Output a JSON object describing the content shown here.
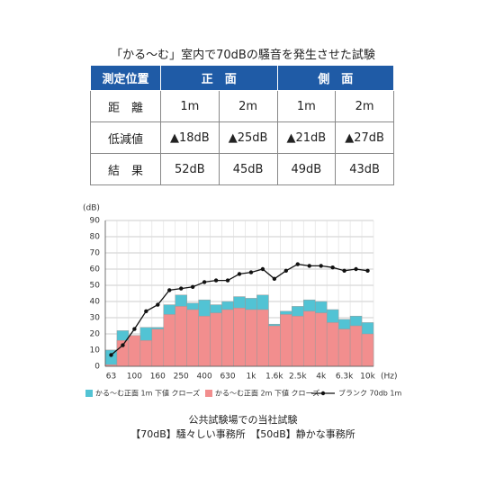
{
  "header": {
    "title": "「かる～む」室内で70dBの騒音を発生させた試験"
  },
  "table": {
    "header": [
      "測定位置",
      "正　面",
      "側　面"
    ],
    "rows": [
      [
        "距　離",
        "1m",
        "2m",
        "1m",
        "2m"
      ],
      [
        "低減値",
        "▲18dB",
        "▲25dB",
        "▲21dB",
        "▲27dB"
      ],
      [
        "結　果",
        "52dB",
        "45dB",
        "49dB",
        "43dB"
      ]
    ]
  },
  "chart_data": {
    "type": "bar",
    "ylabel": "(dB)",
    "xlabel": "(Hz)",
    "categories": [
      "63",
      null,
      "100",
      null,
      "160",
      null,
      "250",
      null,
      "400",
      null,
      "630",
      null,
      "1k",
      null,
      "1.6k",
      null,
      "2.5k",
      null,
      "4k",
      null,
      "6.3k",
      null,
      "10k"
    ],
    "series": [
      {
        "name": "かる～む正面 1m 下値 クローズ",
        "type": "bar",
        "color": "#52c3d4",
        "values": [
          10,
          22,
          19,
          24,
          24,
          38,
          44,
          39,
          41,
          38,
          40,
          43,
          42,
          44,
          26,
          34,
          37,
          41,
          40,
          35,
          29,
          31,
          27
        ]
      },
      {
        "name": "かる～む正面 2m 下値 クローズ",
        "type": "bar",
        "color": "#f28e8e",
        "values": [
          1,
          16,
          19,
          16,
          23,
          32,
          37,
          35,
          31,
          33,
          35,
          36,
          35,
          35,
          25,
          32,
          31,
          34,
          33,
          27,
          23,
          25,
          20
        ]
      },
      {
        "name": "ブランク 70db 1m",
        "type": "line",
        "color": "#111111",
        "values": [
          7,
          13,
          23,
          34,
          38,
          47,
          48,
          49,
          52,
          53,
          53,
          57,
          58,
          60,
          54,
          59,
          63,
          62,
          62,
          61,
          59,
          60,
          59
        ]
      }
    ],
    "ylim": [
      0,
      90
    ],
    "yticks": [
      0,
      10,
      20,
      30,
      40,
      50,
      60,
      70,
      80,
      90
    ],
    "grid": true
  },
  "footer": {
    "title": "公共試験場での当社試験",
    "note": "【70dB】騒々しい事務所　【50dB】静かな事務所"
  }
}
